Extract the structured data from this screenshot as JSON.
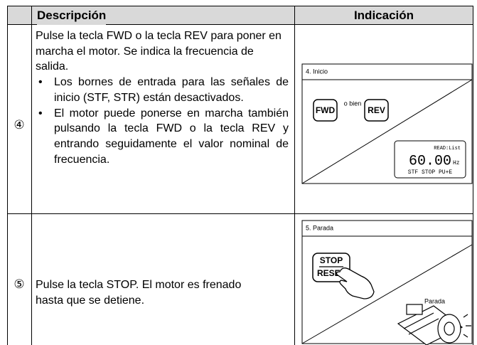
{
  "table": {
    "header": [
      "Descripción",
      "Indicación"
    ],
    "rows": [
      {
        "step": "④",
        "description": "Pulse la tecla FWD o la tecla REV para poner en marcha el motor. Se indica la frecuencia de salida.",
        "bullets": [
          "Los bornes de entrada para las señales de inicio (STF, STR) están desactivados.",
          "El motor puede ponerse en marcha también pulsando la tecla FWD o la tecla REV y entrando seguidamente el valor nominal de frecuencia."
        ],
        "panel": {
          "title": "4. Inicio",
          "keys": [
            "FWD",
            "REV"
          ],
          "connector": "o bien",
          "display": {
            "mode": "READ:List",
            "value": "60.00",
            "unit": "Hz",
            "status": "STF STOP PU+E"
          }
        }
      },
      {
        "step": "⑤",
        "description": "Pulse la tecla STOP. El motor es frenado hasta que se detiene.",
        "panel": {
          "title": "5. Parada",
          "key": [
            "STOP",
            "RESET"
          ],
          "label": "Parada"
        }
      }
    ]
  }
}
